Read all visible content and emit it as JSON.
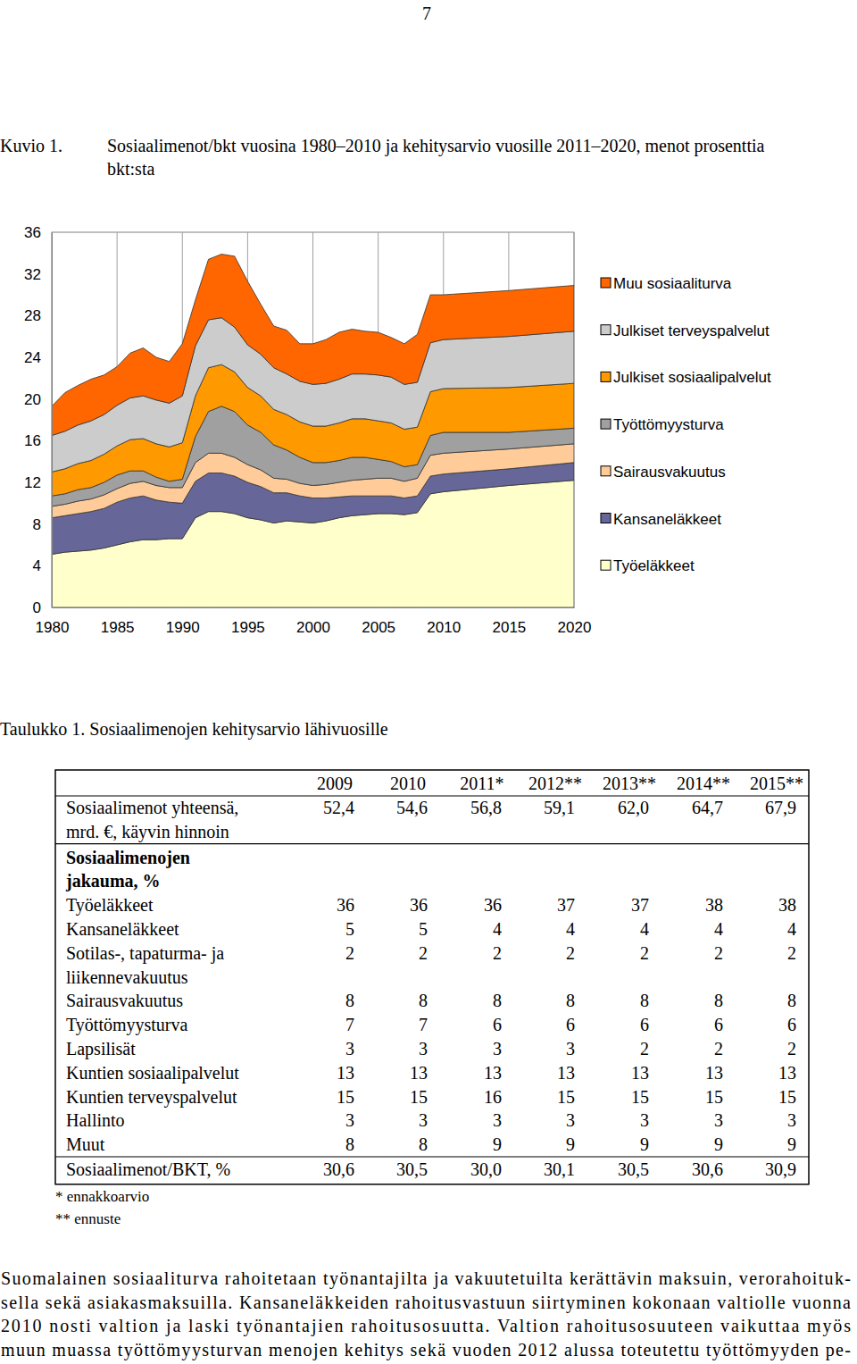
{
  "page_number": "7",
  "figure_label": "Kuvio 1.",
  "chart_data": {
    "type": "area",
    "title": "Sosiaalimenot/bkt vuosina 1980–2010 ja kehitysarvio vuosille 2011–2020, menot prosenttia bkt:sta",
    "stacked": true,
    "grid": true,
    "legend": "right",
    "x": [
      1980,
      1981,
      1982,
      1983,
      1984,
      1985,
      1986,
      1987,
      1988,
      1989,
      1990,
      1991,
      1992,
      1993,
      1994,
      1995,
      1996,
      1997,
      1998,
      1999,
      2000,
      2001,
      2002,
      2003,
      2004,
      2005,
      2006,
      2007,
      2008,
      2009,
      2010,
      2015,
      2020
    ],
    "xlim": [
      1980,
      2020
    ],
    "xticks": [
      1980,
      1985,
      1990,
      1995,
      2000,
      2005,
      2010,
      2015,
      2020
    ],
    "ylim": [
      0,
      36
    ],
    "yticks": [
      0,
      4,
      8,
      12,
      16,
      20,
      24,
      28,
      32,
      36
    ],
    "series": [
      {
        "name": "Työeläkkeet",
        "color": "#ffffcc",
        "values": [
          5.1,
          5.3,
          5.4,
          5.5,
          5.7,
          6.0,
          6.3,
          6.5,
          6.5,
          6.6,
          6.6,
          8.6,
          9.2,
          9.2,
          9.0,
          8.6,
          8.4,
          8.1,
          8.3,
          8.2,
          8.1,
          8.3,
          8.6,
          8.8,
          8.9,
          9.0,
          9.0,
          8.9,
          9.1,
          10.9,
          11.1,
          11.7,
          12.2
        ]
      },
      {
        "name": "Kansaneläkkeet",
        "color": "#666699",
        "values": [
          3.5,
          3.5,
          3.6,
          3.7,
          3.8,
          4.1,
          4.2,
          4.2,
          3.8,
          3.5,
          3.4,
          3.5,
          3.7,
          3.7,
          3.6,
          3.4,
          3.2,
          2.9,
          2.7,
          2.5,
          2.4,
          2.2,
          2.0,
          1.9,
          1.8,
          1.7,
          1.7,
          1.6,
          1.6,
          1.7,
          1.7,
          1.6,
          1.7
        ]
      },
      {
        "name": "Sairausvakuutus",
        "color": "#ffcc99",
        "values": [
          1.1,
          1.1,
          1.2,
          1.2,
          1.3,
          1.3,
          1.4,
          1.4,
          1.4,
          1.4,
          1.5,
          1.8,
          1.9,
          1.9,
          1.8,
          1.7,
          1.6,
          1.4,
          1.3,
          1.2,
          1.2,
          1.3,
          1.4,
          1.5,
          1.6,
          1.7,
          1.7,
          1.6,
          1.7,
          2.0,
          2.0,
          1.9,
          1.8
        ]
      },
      {
        "name": "Työttömyysturva",
        "color": "#a0a0a0",
        "values": [
          1.0,
          1.0,
          1.1,
          1.1,
          1.2,
          1.3,
          1.2,
          1.0,
          0.8,
          0.6,
          0.8,
          2.5,
          4.0,
          4.5,
          4.4,
          3.8,
          3.6,
          3.2,
          2.8,
          2.5,
          2.2,
          2.1,
          2.1,
          2.2,
          2.1,
          1.8,
          1.6,
          1.4,
          1.3,
          1.9,
          2.0,
          1.6,
          1.5
        ]
      },
      {
        "name": "Julkiset sosiaalipalvelut",
        "color": "#ff9900",
        "values": [
          2.3,
          2.4,
          2.5,
          2.6,
          2.7,
          2.8,
          3.0,
          3.1,
          3.2,
          3.3,
          3.5,
          3.9,
          4.2,
          4.0,
          3.8,
          3.6,
          3.5,
          3.4,
          3.4,
          3.4,
          3.5,
          3.5,
          3.6,
          3.7,
          3.7,
          3.7,
          3.7,
          3.6,
          3.6,
          4.2,
          4.2,
          4.3,
          4.3
        ]
      },
      {
        "name": "Julkiset terveyspalvelut",
        "color": "#cccccc",
        "values": [
          3.5,
          3.6,
          3.7,
          3.8,
          3.8,
          3.9,
          4.0,
          4.1,
          4.2,
          4.2,
          4.5,
          4.8,
          4.6,
          4.5,
          4.3,
          4.1,
          4.0,
          4.0,
          3.9,
          3.9,
          4.0,
          4.1,
          4.2,
          4.3,
          4.3,
          4.4,
          4.4,
          4.3,
          4.3,
          4.7,
          4.7,
          4.9,
          5.0
        ]
      },
      {
        "name": "Muu sosiaaliturva",
        "color": "#ff6600",
        "values": [
          2.8,
          3.7,
          3.8,
          4.0,
          3.8,
          3.7,
          4.3,
          4.6,
          4.1,
          4.0,
          5.0,
          4.4,
          5.8,
          6.1,
          6.8,
          6.1,
          4.8,
          4.0,
          4.2,
          3.6,
          3.9,
          4.2,
          4.5,
          4.3,
          4.1,
          4.1,
          3.8,
          3.9,
          4.6,
          4.6,
          4.3,
          4.4,
          4.4
        ]
      }
    ]
  },
  "table": {
    "caption": "Taulukko 1. Sosiaalimenojen kehitysarvio lähivuosille",
    "columns": [
      "2009",
      "2010",
      "2011*",
      "2012**",
      "2013**",
      "2014**",
      "2015**"
    ],
    "total_row": {
      "label": [
        "Sosiaalimenot yhteensä,",
        "mrd. €, käyvin hinnoin"
      ],
      "values": [
        "52,4",
        "54,6",
        "56,8",
        "59,1",
        "62,0",
        "64,7",
        "67,9"
      ]
    },
    "section_heading": [
      "Sosiaalimenojen",
      "jakauma, %"
    ],
    "rows": [
      {
        "label": [
          "Työeläkkeet"
        ],
        "values": [
          "36",
          "36",
          "36",
          "37",
          "37",
          "38",
          "38"
        ]
      },
      {
        "label": [
          "Kansaneläkkeet"
        ],
        "values": [
          "5",
          "5",
          "4",
          "4",
          "4",
          "4",
          "4"
        ]
      },
      {
        "label": [
          "Sotilas-, tapaturma- ja",
          "liikennevakuutus"
        ],
        "values": [
          "2",
          "2",
          "2",
          "2",
          "2",
          "2",
          "2"
        ]
      },
      {
        "label": [
          "Sairausvakuutus"
        ],
        "values": [
          "8",
          "8",
          "8",
          "8",
          "8",
          "8",
          "8"
        ]
      },
      {
        "label": [
          "Työttömyysturva"
        ],
        "values": [
          "7",
          "7",
          "6",
          "6",
          "6",
          "6",
          "6"
        ]
      },
      {
        "label": [
          "Lapsilisät"
        ],
        "values": [
          "3",
          "3",
          "3",
          "3",
          "2",
          "2",
          "2"
        ]
      },
      {
        "label": [
          "Kuntien sosiaalipalvelut"
        ],
        "values": [
          "13",
          "13",
          "13",
          "13",
          "13",
          "13",
          "13"
        ]
      },
      {
        "label": [
          "Kuntien terveyspalvelut"
        ],
        "values": [
          "15",
          "15",
          "16",
          "15",
          "15",
          "15",
          "15"
        ]
      },
      {
        "label": [
          "Hallinto"
        ],
        "values": [
          "3",
          "3",
          "3",
          "3",
          "3",
          "3",
          "3"
        ]
      },
      {
        "label": [
          "Muut"
        ],
        "values": [
          "8",
          "8",
          "9",
          "9",
          "9",
          "9",
          "9"
        ]
      }
    ],
    "last_row": {
      "label": [
        "Sosiaalimenot/BKT, %"
      ],
      "values": [
        "30,6",
        "30,5",
        "30,0",
        "30,1",
        "30,5",
        "30,6",
        "30,9"
      ]
    },
    "notes": [
      "*  ennakkoarvio",
      "** ennuste"
    ]
  },
  "paragraph_lines": [
    "Suomalainen sosiaaliturva rahoitetaan työnantajilta ja vakuutetuilta kerättävin maksuin, verorahoituk-",
    "sella sekä asiakasmaksuilla. Kansaneläkkeiden rahoitusvastuun siirtyminen kokonaan valtiolle vuonna",
    "2010 nosti valtion ja laski työnantajien rahoitusosuutta. Valtion rahoitusosuuteen vaikuttaa myös",
    "muun muassa työttömyysturvan menojen kehitys sekä vuoden 2012 alussa toteutettu työttömyyden pe-"
  ]
}
